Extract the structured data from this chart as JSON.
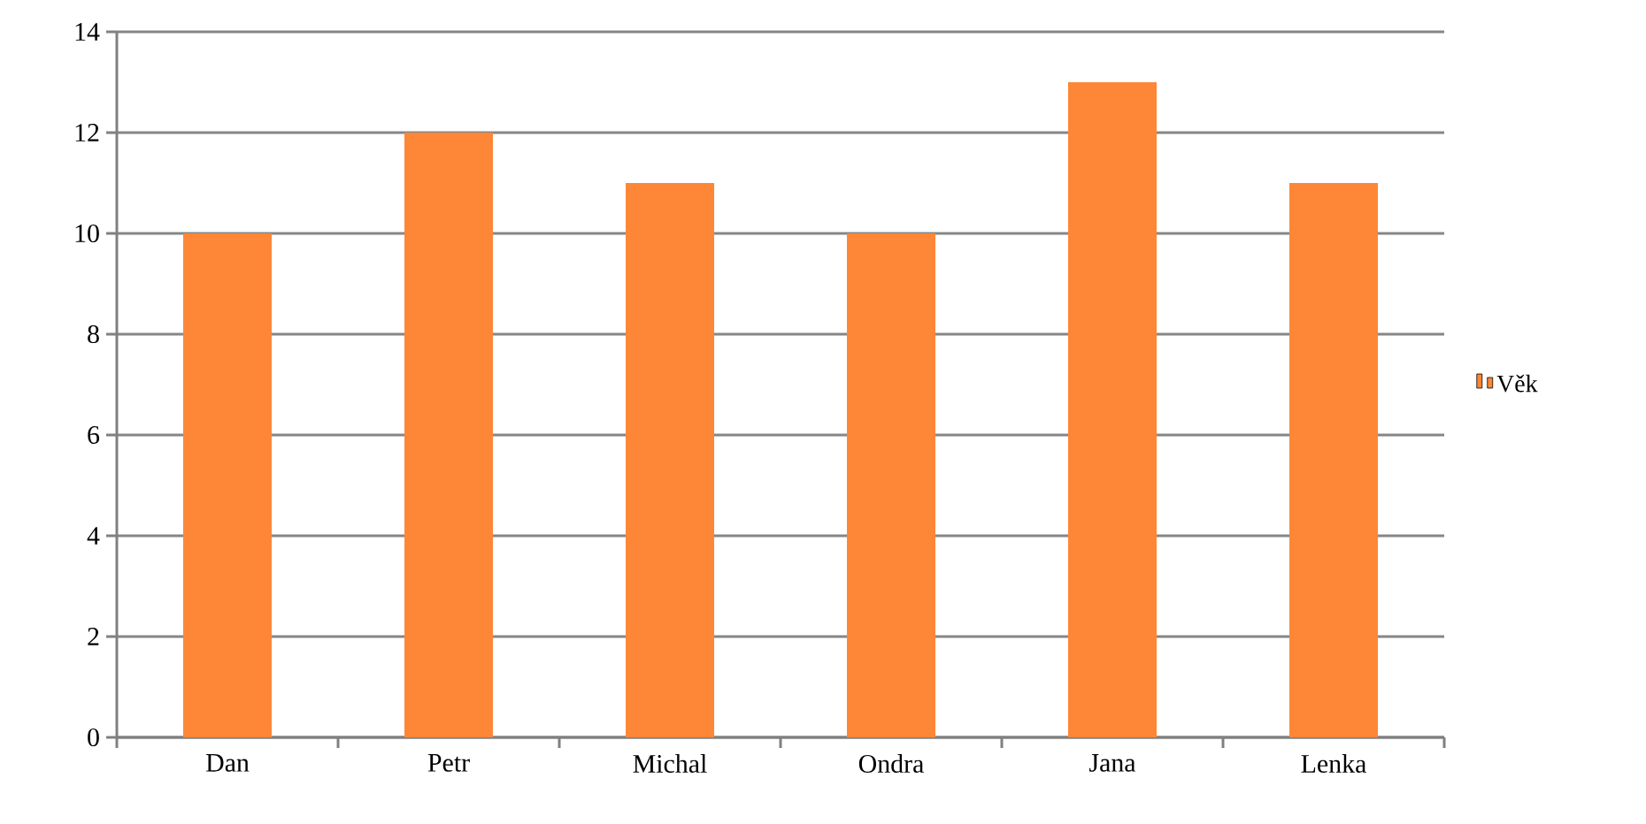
{
  "chart_data": {
    "type": "bar",
    "categories": [
      "Dan",
      "Petr",
      "Michal",
      "Ondra",
      "Jana",
      "Lenka"
    ],
    "series": [
      {
        "name": "Věk",
        "color": "#fd8737",
        "values": [
          10,
          12,
          11,
          10,
          13,
          11
        ]
      }
    ],
    "ylim": [
      0,
      14
    ],
    "yticks": [
      0,
      2,
      4,
      6,
      8,
      10,
      12,
      14
    ],
    "grid": "y",
    "legend": "right"
  }
}
